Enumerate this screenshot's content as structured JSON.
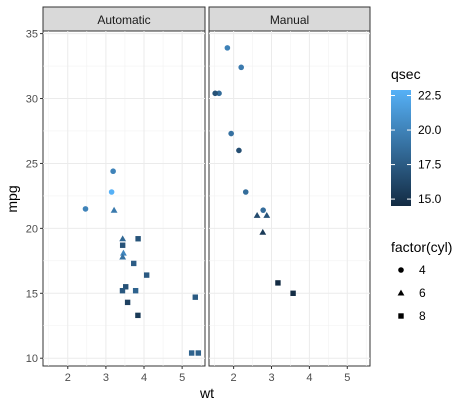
{
  "chart_data": {
    "type": "scatter",
    "xlabel": "wt",
    "ylabel": "mpg",
    "xlim": [
      1.35,
      5.6
    ],
    "ylim": [
      9.4,
      35.2
    ],
    "x_ticks": [
      2,
      3,
      4,
      5
    ],
    "y_ticks": [
      10,
      15,
      20,
      25,
      30,
      35
    ],
    "grid": true,
    "facets": [
      "Automatic",
      "Manual"
    ],
    "color_legend": {
      "title": "qsec",
      "range": [
        14.5,
        22.9
      ],
      "ticks": [
        15.0,
        17.5,
        20.0,
        22.5
      ],
      "tick_labels": [
        "15.0",
        "17.5",
        "20.0",
        "22.5"
      ],
      "low_color": "#132b43",
      "high_color": "#56b1f7"
    },
    "shape_legend": {
      "title": "factor(cyl)",
      "entries": [
        {
          "label": "4",
          "shape": "circle"
        },
        {
          "label": "6",
          "shape": "triangle"
        },
        {
          "label": "8",
          "shape": "square"
        }
      ]
    },
    "series": [
      {
        "facet": "Automatic",
        "points": [
          {
            "x": 3.215,
            "y": 21.4,
            "cyl": 6,
            "qsec": 19.44
          },
          {
            "x": 3.44,
            "y": 18.7,
            "cyl": 8,
            "qsec": 17.02
          },
          {
            "x": 3.46,
            "y": 18.1,
            "cyl": 6,
            "qsec": 20.22
          },
          {
            "x": 3.57,
            "y": 14.3,
            "cyl": 8,
            "qsec": 15.84
          },
          {
            "x": 3.19,
            "y": 24.4,
            "cyl": 4,
            "qsec": 20.0
          },
          {
            "x": 3.15,
            "y": 22.8,
            "cyl": 4,
            "qsec": 22.9
          },
          {
            "x": 3.44,
            "y": 19.2,
            "cyl": 6,
            "qsec": 18.3
          },
          {
            "x": 3.44,
            "y": 17.8,
            "cyl": 6,
            "qsec": 18.9
          },
          {
            "x": 4.07,
            "y": 16.4,
            "cyl": 8,
            "qsec": 17.4
          },
          {
            "x": 3.73,
            "y": 17.3,
            "cyl": 8,
            "qsec": 17.6
          },
          {
            "x": 3.78,
            "y": 15.2,
            "cyl": 8,
            "qsec": 18.0
          },
          {
            "x": 5.25,
            "y": 10.4,
            "cyl": 8,
            "qsec": 17.98
          },
          {
            "x": 5.424,
            "y": 10.4,
            "cyl": 8,
            "qsec": 17.82
          },
          {
            "x": 5.345,
            "y": 14.7,
            "cyl": 8,
            "qsec": 17.42
          },
          {
            "x": 2.465,
            "y": 21.5,
            "cyl": 4,
            "qsec": 20.01
          },
          {
            "x": 3.52,
            "y": 15.5,
            "cyl": 8,
            "qsec": 16.87
          },
          {
            "x": 3.435,
            "y": 15.2,
            "cyl": 8,
            "qsec": 17.3
          },
          {
            "x": 3.84,
            "y": 13.3,
            "cyl": 8,
            "qsec": 15.41
          },
          {
            "x": 3.845,
            "y": 19.2,
            "cyl": 8,
            "qsec": 17.05
          }
        ]
      },
      {
        "facet": "Manual",
        "points": [
          {
            "x": 2.62,
            "y": 21.0,
            "cyl": 6,
            "qsec": 16.46
          },
          {
            "x": 2.875,
            "y": 21.0,
            "cyl": 6,
            "qsec": 17.02
          },
          {
            "x": 2.32,
            "y": 22.8,
            "cyl": 4,
            "qsec": 18.61
          },
          {
            "x": 2.2,
            "y": 32.4,
            "cyl": 4,
            "qsec": 19.47
          },
          {
            "x": 1.615,
            "y": 30.4,
            "cyl": 4,
            "qsec": 18.52
          },
          {
            "x": 1.835,
            "y": 33.9,
            "cyl": 4,
            "qsec": 19.9
          },
          {
            "x": 1.935,
            "y": 27.3,
            "cyl": 4,
            "qsec": 18.9
          },
          {
            "x": 2.14,
            "y": 26.0,
            "cyl": 4,
            "qsec": 16.7
          },
          {
            "x": 1.513,
            "y": 30.4,
            "cyl": 4,
            "qsec": 16.9
          },
          {
            "x": 3.17,
            "y": 15.8,
            "cyl": 8,
            "qsec": 14.5
          },
          {
            "x": 2.77,
            "y": 19.7,
            "cyl": 6,
            "qsec": 15.5
          },
          {
            "x": 3.57,
            "y": 15.0,
            "cyl": 8,
            "qsec": 14.6
          },
          {
            "x": 2.78,
            "y": 21.4,
            "cyl": 4,
            "qsec": 18.6
          }
        ]
      }
    ]
  }
}
